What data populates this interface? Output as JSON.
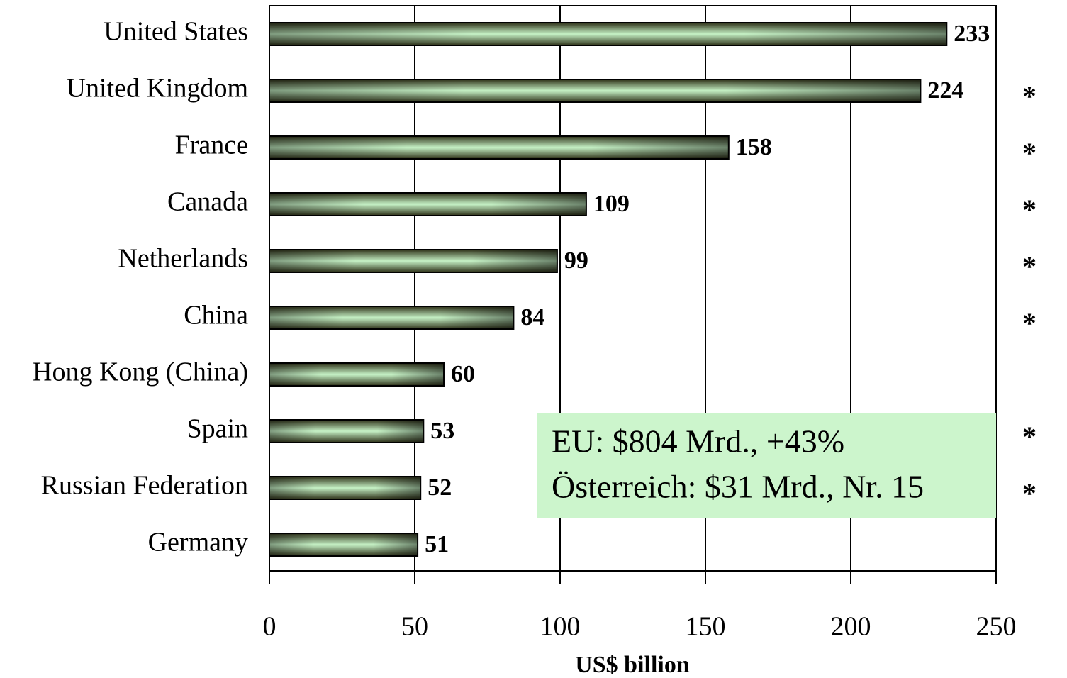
{
  "chart_data": {
    "type": "barh",
    "xlabel": "US$ billion",
    "categories": [
      "United States",
      "United Kingdom",
      "France",
      "Canada",
      "Netherlands",
      "China",
      "Hong Kong (China)",
      "Spain",
      "Russian Federation",
      "Germany"
    ],
    "values": [
      233,
      224,
      158,
      109,
      99,
      84,
      60,
      53,
      52,
      51
    ],
    "markers": [
      null,
      "*",
      "*",
      "*",
      "*",
      "*",
      null,
      "*",
      "*",
      null
    ],
    "color": "#c6f2c6",
    "xlim": [
      0,
      250
    ],
    "xticks": [
      0,
      50,
      100,
      150,
      200,
      250
    ],
    "grid": true,
    "annotation": {
      "lines": [
        "EU: $804 Mrd., +43%",
        "Österreich: $31 Mrd., Nr. 15"
      ],
      "color": "#ccf5cc"
    }
  }
}
